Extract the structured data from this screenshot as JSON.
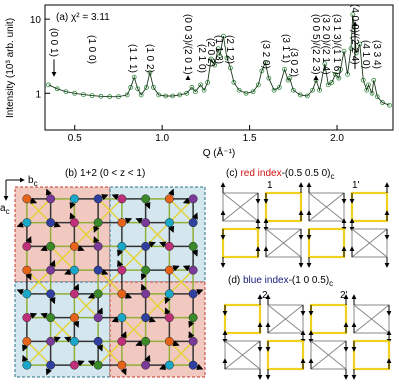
{
  "chart_data": {
    "type": "line",
    "title": "(a) χ² = 3.11",
    "x_label": "Q (Å⁻¹)",
    "y_label": "Intensity (10³ arb. unit)",
    "log_y": true,
    "marker": "open-circle",
    "line_color": "#1f3a1f",
    "xlim": [
      0.33,
      2.32
    ],
    "xticks": [
      0.5,
      {
        "value": 1.0,
        "label": "1.0"
      },
      1.5,
      {
        "value": 2.0,
        "label": "2.0"
      }
    ],
    "ylim": [
      0.32,
      15.5
    ],
    "yticks": [
      1,
      10
    ],
    "x": [
      0.35,
      0.4,
      0.45,
      0.5,
      0.55,
      0.6,
      0.65,
      0.7,
      0.75,
      0.8,
      0.82,
      0.84,
      0.86,
      0.88,
      0.91,
      0.93,
      0.95,
      0.98,
      1.02,
      1.06,
      1.1,
      1.14,
      1.17,
      1.19,
      1.22,
      1.24,
      1.26,
      1.28,
      1.3,
      1.32,
      1.33,
      1.35,
      1.37,
      1.39,
      1.41,
      1.44,
      1.48,
      1.52,
      1.55,
      1.57,
      1.59,
      1.61,
      1.64,
      1.67,
      1.7,
      1.72,
      1.73,
      1.75,
      1.79,
      1.83,
      1.86,
      1.88,
      1.9,
      1.93,
      1.95,
      1.97,
      1.99,
      2.01,
      2.02,
      2.04,
      2.06,
      2.08,
      2.09,
      2.11,
      2.13,
      2.15,
      2.17,
      2.18,
      2.2,
      2.21,
      2.23,
      2.26,
      2.3
    ],
    "series": [
      {
        "color": "#2e8b3e",
        "values": [
          1.3,
          1.15,
          1.05,
          1.0,
          0.96,
          0.93,
          0.91,
          0.9,
          0.9,
          0.95,
          1.2,
          1.65,
          1.15,
          0.95,
          1.2,
          1.9,
          1.2,
          0.95,
          0.92,
          0.92,
          0.95,
          1.0,
          1.2,
          1.05,
          1.3,
          1.1,
          1.4,
          2.9,
          2.4,
          4.0,
          3.2,
          5.9,
          3.0,
          2.2,
          1.4,
          1.1,
          1.0,
          1.05,
          1.3,
          2.0,
          2.6,
          1.6,
          1.1,
          1.2,
          2.1,
          1.5,
          1.6,
          1.1,
          0.95,
          0.92,
          1.1,
          1.5,
          1.1,
          2.5,
          1.3,
          1.4,
          1.8,
          1.6,
          2.1,
          3.7,
          1.8,
          4.0,
          11.5,
          3.5,
          4.6,
          1.5,
          1.1,
          1.3,
          1.0,
          1.5,
          0.9,
          0.75,
          0.69
        ]
      }
    ],
    "annotations": [
      {
        "text": "(0 0 1)",
        "color": "#000000",
        "arrow": true
      },
      {
        "text": "(1 0 0)",
        "color": "#d01010",
        "arrow": false
      },
      {
        "text": "(1 1 1)",
        "color": "#000000",
        "arrow": false
      },
      {
        "text": "(1 0 2)",
        "color": "#d01010",
        "arrow": false
      },
      {
        "text": "(0 0 3)/(2 0 1)",
        "color": "#000000",
        "arrow": true
      },
      {
        "text": "(2 1 0)",
        "color": "#d01010",
        "arrow": false
      },
      {
        "text": "(2 0 2)",
        "color": "#000000",
        "arrow": false
      },
      {
        "text": "(1 1 3)",
        "color": "#000000",
        "arrow": false
      },
      {
        "text": "(2 1 2)",
        "color": "#d01010",
        "arrow": false
      },
      {
        "text": "(3 2 0)",
        "color": "#d01010",
        "arrow": false
      },
      {
        "text": "(3 1 1)",
        "color": "#000000",
        "arrow": false
      },
      {
        "text": "(3 0 2)",
        "color": "#d01010",
        "arrow": false
      },
      {
        "text": "(0 0 5)/(2 2 3)",
        "color": "#000000",
        "arrow": true
      },
      {
        "text": "(3 2 0)/(2 1 4)",
        "color": "#d01010",
        "arrow": false
      },
      {
        "text": "(3 1 3)/(1 1 6)",
        "color": "#000000",
        "arrow": false
      },
      {
        "text": "(4 0 0)/(2 2 4)",
        "color": "#000000",
        "arrow": true
      },
      {
        "text": "(4 1 0)",
        "color": "#d01010",
        "arrow": false
      },
      {
        "text": "(3 3 4)",
        "color": "#d01010",
        "arrow": false
      }
    ]
  },
  "panel_b": {
    "title": "(b) 1+2 (0 < z < 1)",
    "b_axis": {
      "main": "b",
      "sub": "c"
    },
    "a_axis": {
      "main": "a",
      "sub": "c"
    }
  },
  "panel_c": {
    "prefix": "(c) ",
    "highlight": "red index",
    "rest": "-(0.5 0.5 0)",
    "sub": "c",
    "highlight_color": "#d01010",
    "labels": [
      "1",
      "1'"
    ]
  },
  "panel_d": {
    "prefix": "(d) ",
    "highlight": "blue index",
    "rest": "-(1 0 0.5)",
    "sub": "c",
    "highlight_color": "#1a1a7a",
    "labels": [
      "2",
      "2'"
    ]
  }
}
